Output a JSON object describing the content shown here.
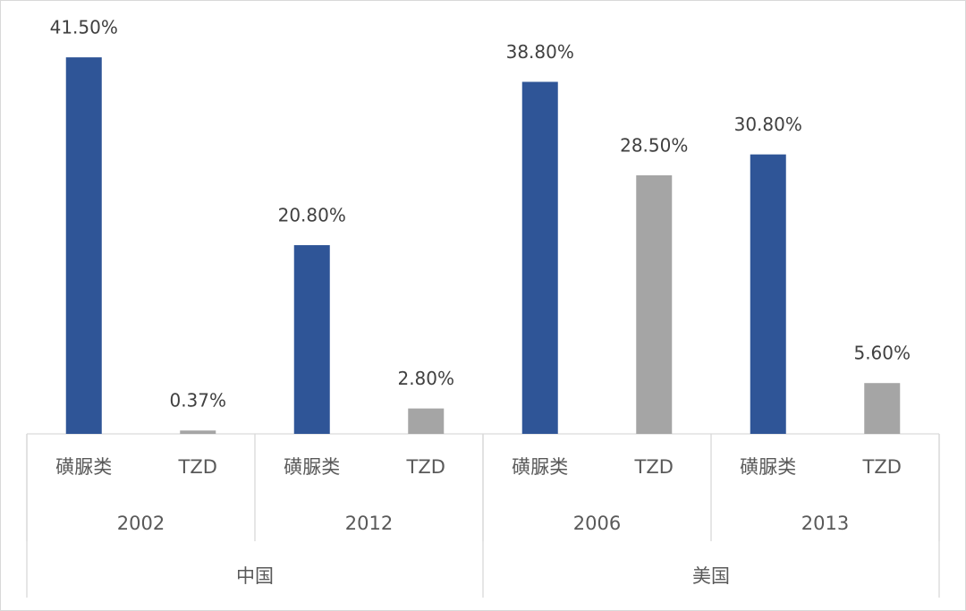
{
  "chart_data": {
    "type": "bar",
    "categories": [
      "磺脲类",
      "TZD",
      "磺脲类",
      "TZD",
      "磺脲类",
      "TZD",
      "磺脲类",
      "TZD"
    ],
    "groups": [
      "2002",
      "2012",
      "2006",
      "2013"
    ],
    "supergroups": [
      "中国",
      "美国"
    ],
    "values": [
      41.5,
      0.37,
      20.8,
      2.8,
      38.8,
      28.5,
      30.8,
      5.6
    ],
    "value_labels": [
      "41.50%",
      "0.37%",
      "20.80%",
      "2.80%",
      "38.80%",
      "28.50%",
      "30.80%",
      "5.60%"
    ],
    "colors": [
      "#2f5597",
      "#a5a5a5",
      "#2f5597",
      "#a5a5a5",
      "#2f5597",
      "#a5a5a5",
      "#2f5597",
      "#a5a5a5"
    ],
    "ylim": [
      0,
      45
    ]
  }
}
